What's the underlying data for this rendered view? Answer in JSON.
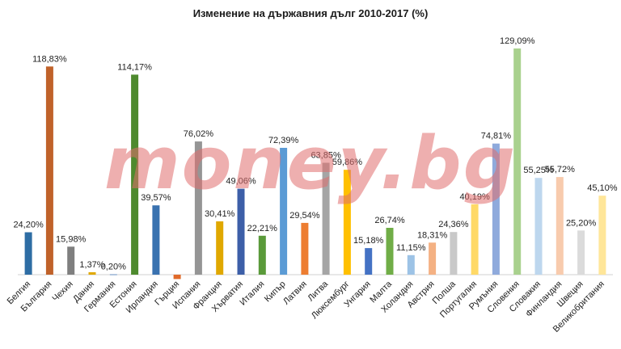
{
  "chart_data": {
    "type": "bar",
    "title": "Изменение на държавния дълг 2010-2017 (%)",
    "xlabel": "",
    "ylabel": "",
    "ylim": [
      -3,
      135
    ],
    "grid": false,
    "legend": "none",
    "categories": [
      "Белгия",
      "България",
      "Чехия",
      "Дания",
      "Германия",
      "Естония",
      "Ирландия",
      "Гърция",
      "Испания",
      "Франция",
      "Хърватия",
      "Италия",
      "Кипър",
      "Латвия",
      "Литва",
      "Люксембург",
      "Унгария",
      "Малта",
      "Холандия",
      "Австрия",
      "Полша",
      "Португалия",
      "Румъния",
      "Словения",
      "Словакия",
      "Финландия",
      "Швеция",
      "Великобритания"
    ],
    "values": [
      24.2,
      118.83,
      15.98,
      1.37,
      0.2,
      114.17,
      39.57,
      -2.5,
      76.02,
      30.41,
      49.06,
      22.21,
      72.39,
      29.54,
      63.85,
      59.86,
      15.18,
      26.74,
      11.15,
      18.31,
      24.36,
      40.19,
      74.81,
      129.09,
      55.25,
      55.72,
      25.2,
      45.1
    ],
    "data_labels": [
      "24,20%",
      "118,83%",
      "15,98%",
      "1,37%",
      "0,20%",
      "114,17%",
      "39,57%",
      "",
      "76,02%",
      "30,41%",
      "49,06%",
      "22,21%",
      "72,39%",
      "29,54%",
      "63,85%",
      "59,86%",
      "15,18%",
      "26,74%",
      "11,15%",
      "18,31%",
      "24,36%",
      "40,19%",
      "74,81%",
      "129,09%",
      "55,25%",
      "55,72%",
      "25,20%",
      "45,10%"
    ],
    "bar_colors": [
      "#2e6da4",
      "#c0622a",
      "#7f7f7f",
      "#e0a800",
      "#4a7ebb",
      "#4e8a2e",
      "#3a72b0",
      "#e06a2a",
      "#959595",
      "#e0a800",
      "#3d5fa8",
      "#5a9a3a",
      "#5b9bd5",
      "#ed7d31",
      "#a5a5a5",
      "#ffc000",
      "#4472c4",
      "#70ad47",
      "#9dc3e6",
      "#f4b183",
      "#c9c9c9",
      "#ffd966",
      "#8faadc",
      "#a9d18e",
      "#bdd7ee",
      "#f8cbad",
      "#dbdbdb",
      "#ffe699"
    ]
  },
  "watermark": "money.bg"
}
